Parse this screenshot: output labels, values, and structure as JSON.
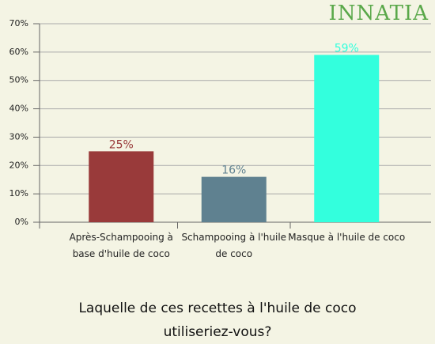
{
  "logo": "INNATIA",
  "chart_data": {
    "type": "bar",
    "title": "Laquelle de ces recettes à l'huile de coco utiliseriez-vous?",
    "categories": [
      "Après-Schampooing à base d'huile de coco",
      "Schampooing à l'huile de coco",
      "Masque à l'huile de coco"
    ],
    "values": [
      25,
      16,
      59
    ],
    "value_labels": [
      "25%",
      "16%",
      "59%"
    ],
    "colors": [
      "#993a3a",
      "#5f8190",
      "#33ffdd"
    ],
    "ylim": [
      0,
      70
    ],
    "yticks": [
      {
        "value": 0,
        "label": "0%"
      },
      {
        "value": 10,
        "label": "10%"
      },
      {
        "value": 20,
        "label": "20%"
      },
      {
        "value": 30,
        "label": "30%"
      },
      {
        "value": 40,
        "label": "40%"
      },
      {
        "value": 50,
        "label": "50%"
      },
      {
        "value": 60,
        "label": "60%"
      },
      {
        "value": 70,
        "label": "70%"
      }
    ],
    "grid": true
  }
}
